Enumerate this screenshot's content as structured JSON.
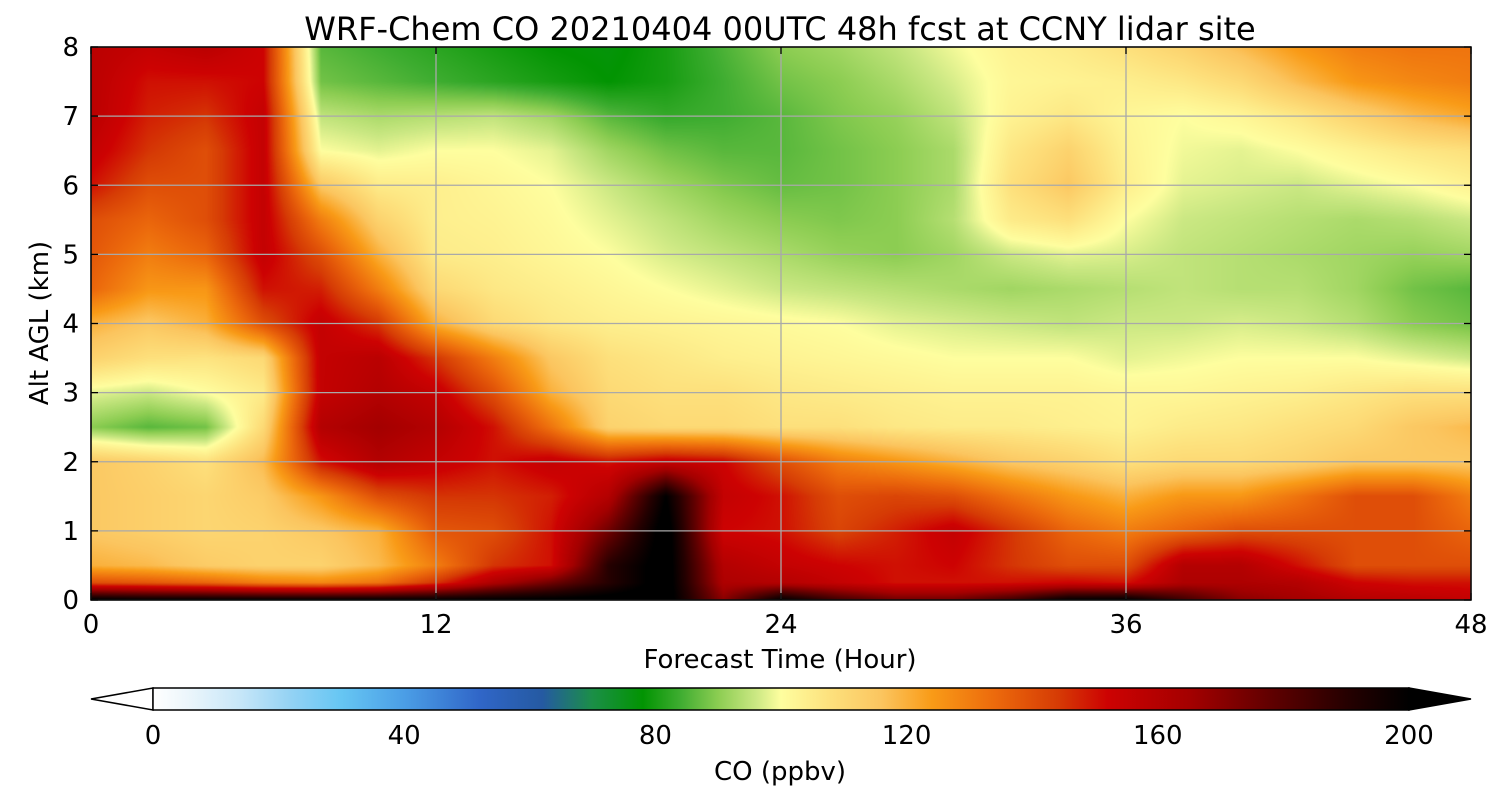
{
  "chart_data": {
    "type": "heatmap",
    "title": "WRF-Chem CO  20210404 00UTC 48h fcst at CCNY lidar site",
    "xlabel": "Forecast Time (Hour)",
    "ylabel": "Alt AGL (km)",
    "xlim": [
      0,
      48
    ],
    "ylim": [
      0,
      8
    ],
    "x_ticks": [
      "0",
      "12",
      "24",
      "36",
      "48"
    ],
    "y_ticks": [
      "0",
      "1",
      "2",
      "3",
      "4",
      "5",
      "6",
      "7",
      "8"
    ],
    "grid": true,
    "x": [
      0,
      2,
      4,
      6,
      8,
      10,
      12,
      14,
      16,
      18,
      20,
      22,
      24,
      26,
      28,
      30,
      32,
      34,
      36,
      38,
      40,
      42,
      44,
      46,
      48
    ],
    "y": [
      0,
      0.25,
      0.5,
      1,
      1.5,
      2,
      2.5,
      3,
      3.5,
      4,
      4.5,
      5,
      5.5,
      6,
      6.5,
      7,
      7.5,
      8
    ],
    "z": [
      [
        202,
        200,
        200,
        200,
        200,
        200,
        200,
        201,
        202,
        204,
        205,
        170,
        200,
        185,
        175,
        175,
        185,
        200,
        201,
        185,
        170,
        165,
        160,
        158,
        155
      ],
      [
        140,
        138,
        135,
        130,
        128,
        132,
        145,
        162,
        175,
        190,
        205,
        162,
        160,
        155,
        150,
        150,
        150,
        152,
        150,
        162,
        162,
        160,
        152,
        150,
        150
      ],
      [
        120,
        118,
        114,
        112,
        112,
        118,
        130,
        145,
        150,
        190,
        205,
        160,
        155,
        152,
        150,
        152,
        145,
        140,
        140,
        160,
        160,
        150,
        140,
        140,
        140
      ],
      [
        115,
        113,
        111,
        112,
        115,
        120,
        138,
        140,
        150,
        175,
        205,
        152,
        150,
        142,
        148,
        155,
        145,
        135,
        130,
        135,
        140,
        140,
        140,
        140,
        135
      ],
      [
        115,
        113,
        111,
        114,
        125,
        140,
        145,
        145,
        148,
        160,
        200,
        155,
        150,
        140,
        142,
        140,
        132,
        125,
        120,
        125,
        125,
        132,
        140,
        140,
        130
      ],
      [
        115,
        112,
        108,
        118,
        150,
        160,
        155,
        150,
        155,
        150,
        155,
        152,
        140,
        130,
        125,
        120,
        115,
        112,
        108,
        110,
        110,
        112,
        115,
        115,
        115
      ],
      [
        90,
        86,
        88,
        110,
        160,
        165,
        160,
        150,
        132,
        112,
        110,
        110,
        108,
        108,
        106,
        105,
        105,
        104,
        103,
        105,
        106,
        108,
        110,
        115,
        118
      ],
      [
        98,
        96,
        100,
        105,
        155,
        160,
        155,
        140,
        120,
        110,
        108,
        108,
        106,
        105,
        104,
        103,
        103,
        103,
        102,
        102,
        103,
        104,
        106,
        108,
        108
      ],
      [
        112,
        108,
        107,
        110,
        155,
        158,
        145,
        130,
        115,
        108,
        106,
        104,
        103,
        102,
        101,
        100,
        100,
        100,
        98,
        99,
        100,
        100,
        100,
        98,
        96
      ],
      [
        120,
        115,
        120,
        140,
        155,
        145,
        120,
        110,
        106,
        104,
        103,
        102,
        101,
        100,
        98,
        97,
        96,
        95,
        96,
        96,
        97,
        96,
        94,
        90,
        88
      ],
      [
        135,
        125,
        125,
        150,
        148,
        130,
        110,
        106,
        104,
        102,
        100,
        98,
        96,
        95,
        94,
        93,
        92,
        93,
        94,
        95,
        94,
        94,
        92,
        88,
        86
      ],
      [
        138,
        130,
        135,
        155,
        140,
        120,
        105,
        104,
        102,
        100,
        97,
        95,
        93,
        91,
        90,
        92,
        96,
        98,
        97,
        95,
        94,
        93,
        92,
        91,
        92
      ],
      [
        140,
        135,
        140,
        155,
        130,
        112,
        104,
        103,
        101,
        98,
        95,
        92,
        90,
        89,
        90,
        94,
        105,
        108,
        100,
        96,
        95,
        94,
        93,
        94,
        96
      ],
      [
        150,
        140,
        140,
        155,
        115,
        105,
        104,
        102,
        100,
        96,
        92,
        89,
        87,
        88,
        90,
        93,
        108,
        115,
        104,
        98,
        97,
        96,
        98,
        100,
        103
      ],
      [
        155,
        145,
        140,
        155,
        100,
        98,
        100,
        100,
        98,
        92,
        88,
        86,
        86,
        88,
        90,
        93,
        106,
        112,
        103,
        99,
        98,
        100,
        103,
        106,
        108
      ],
      [
        158,
        148,
        145,
        155,
        95,
        93,
        94,
        95,
        92,
        86,
        83,
        84,
        86,
        89,
        91,
        95,
        103,
        106,
        102,
        100,
        102,
        106,
        112,
        118,
        122
      ],
      [
        158,
        150,
        150,
        152,
        88,
        86,
        84,
        82,
        80,
        78,
        80,
        84,
        88,
        90,
        93,
        97,
        102,
        103,
        104,
        106,
        110,
        118,
        125,
        128,
        130
      ],
      [
        158,
        155,
        158,
        152,
        86,
        84,
        82,
        80,
        78,
        77,
        80,
        85,
        90,
        92,
        95,
        99,
        103,
        105,
        108,
        112,
        118,
        125,
        130,
        132,
        132
      ]
    ],
    "colorbar": {
      "label": "CO  (ppbv)",
      "ticks": [
        "0",
        "40",
        "80",
        "120",
        "160",
        "200"
      ],
      "tick_values": [
        0,
        40,
        80,
        120,
        160,
        200
      ],
      "range": [
        0,
        200
      ],
      "extend": "both",
      "orientation": "horizontal",
      "colormap": [
        [
          0,
          "#ffffff"
        ],
        [
          6,
          "#eaf5fb"
        ],
        [
          14,
          "#c6e6f8"
        ],
        [
          22,
          "#93d2f4"
        ],
        [
          30,
          "#66c6f3"
        ],
        [
          40,
          "#4b9ee6"
        ],
        [
          52,
          "#3066c8"
        ],
        [
          62,
          "#255aa2"
        ],
        [
          70,
          "#1b8f47"
        ],
        [
          78,
          "#029402"
        ],
        [
          84,
          "#3fad31"
        ],
        [
          90,
          "#8ccd52"
        ],
        [
          96,
          "#cbe883"
        ],
        [
          100,
          "#fefe9f"
        ],
        [
          108,
          "#fde07c"
        ],
        [
          116,
          "#fbc55f"
        ],
        [
          124,
          "#f99b17"
        ],
        [
          134,
          "#ec6a0c"
        ],
        [
          144,
          "#d63c05"
        ],
        [
          152,
          "#cd0202"
        ],
        [
          165,
          "#a40000"
        ],
        [
          178,
          "#600000"
        ],
        [
          190,
          "#260000"
        ],
        [
          200,
          "#000000"
        ]
      ]
    }
  }
}
